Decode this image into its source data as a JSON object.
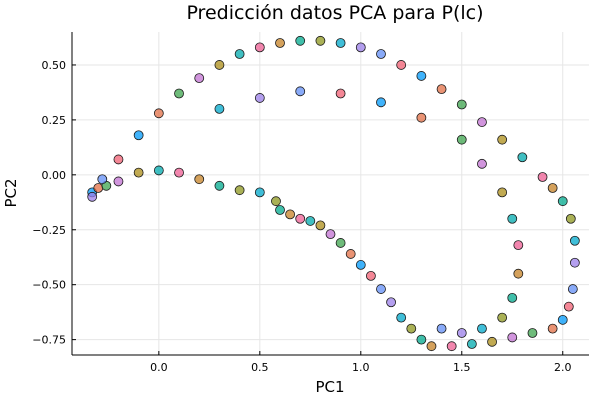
{
  "chart_data": {
    "type": "scatter",
    "title": "Predicción datos PCA para P(lc)",
    "xlabel": "PC1",
    "ylabel": "PC2",
    "xlim": [
      -0.43,
      2.13
    ],
    "ylim": [
      -0.82,
      0.65
    ],
    "xticks": [
      0.0,
      0.5,
      1.0,
      1.5,
      2.0
    ],
    "xtick_labels": [
      "0.0",
      "0.5",
      "1.0",
      "1.5",
      "2.0"
    ],
    "yticks": [
      -0.75,
      -0.5,
      -0.25,
      0.0,
      0.25,
      0.5
    ],
    "ytick_labels": [
      "−0.75",
      "−0.50",
      "−0.25",
      "0.00",
      "0.25",
      "0.50"
    ],
    "grid": true,
    "legend": "none",
    "marker_colors": [
      "#009AF9",
      "#E26F46",
      "#3DA44D",
      "#C271D2",
      "#AC8E18",
      "#00A9AD",
      "#ED5E93",
      "#C68225",
      "#00A98D",
      "#8E971E",
      "#00A8CB",
      "#9B7FE9",
      "#618DF6",
      "#F05F73"
    ],
    "series": [
      {
        "points": [
          [
            -0.33,
            -0.08
          ],
          [
            -0.3,
            -0.06
          ],
          [
            -0.26,
            -0.05
          ],
          [
            -0.2,
            -0.03
          ],
          [
            -0.1,
            0.01
          ],
          [
            0.0,
            0.02
          ],
          [
            0.1,
            0.01
          ],
          [
            0.2,
            -0.02
          ],
          [
            0.3,
            -0.05
          ],
          [
            0.4,
            -0.07
          ],
          [
            0.5,
            -0.08
          ],
          [
            -0.33,
            -0.1
          ],
          [
            -0.28,
            -0.02
          ],
          [
            -0.2,
            0.07
          ],
          [
            -0.1,
            0.18
          ],
          [
            0.0,
            0.28
          ],
          [
            0.1,
            0.37
          ],
          [
            0.2,
            0.44
          ],
          [
            0.3,
            0.5
          ],
          [
            0.4,
            0.55
          ],
          [
            0.5,
            0.58
          ],
          [
            0.6,
            0.6
          ],
          [
            0.7,
            0.61
          ],
          [
            0.8,
            0.61
          ],
          [
            0.9,
            0.6
          ],
          [
            1.0,
            0.58
          ],
          [
            1.1,
            0.55
          ],
          [
            1.2,
            0.5
          ],
          [
            1.3,
            0.45
          ],
          [
            1.4,
            0.39
          ],
          [
            1.5,
            0.32
          ],
          [
            1.6,
            0.24
          ],
          [
            1.7,
            0.16
          ],
          [
            1.8,
            0.08
          ],
          [
            1.9,
            -0.01
          ],
          [
            1.95,
            -0.06
          ],
          [
            2.0,
            -0.12
          ],
          [
            2.04,
            -0.2
          ],
          [
            2.06,
            -0.3
          ],
          [
            2.06,
            -0.4
          ],
          [
            2.05,
            -0.52
          ],
          [
            2.03,
            -0.6
          ],
          [
            2.0,
            -0.66
          ],
          [
            1.95,
            -0.7
          ],
          [
            1.85,
            -0.72
          ],
          [
            1.75,
            -0.74
          ],
          [
            1.65,
            -0.76
          ],
          [
            1.55,
            -0.77
          ],
          [
            1.45,
            -0.78
          ],
          [
            1.35,
            -0.78
          ],
          [
            1.3,
            -0.75
          ],
          [
            1.25,
            -0.7
          ],
          [
            1.2,
            -0.65
          ],
          [
            1.15,
            -0.58
          ],
          [
            1.1,
            -0.52
          ],
          [
            1.05,
            -0.46
          ],
          [
            1.0,
            -0.41
          ],
          [
            0.95,
            -0.36
          ],
          [
            0.9,
            -0.31
          ],
          [
            0.85,
            -0.27
          ],
          [
            0.8,
            -0.23
          ],
          [
            0.75,
            -0.21
          ],
          [
            0.7,
            -0.2
          ],
          [
            0.65,
            -0.18
          ],
          [
            0.6,
            -0.16
          ],
          [
            0.58,
            -0.12
          ],
          [
            0.3,
            0.3
          ],
          [
            0.5,
            0.35
          ],
          [
            0.7,
            0.38
          ],
          [
            0.9,
            0.37
          ],
          [
            1.1,
            0.33
          ],
          [
            1.3,
            0.26
          ],
          [
            1.5,
            0.16
          ],
          [
            1.6,
            0.05
          ],
          [
            1.7,
            -0.08
          ],
          [
            1.75,
            -0.2
          ],
          [
            1.78,
            -0.32
          ],
          [
            1.78,
            -0.45
          ],
          [
            1.75,
            -0.56
          ],
          [
            1.7,
            -0.65
          ],
          [
            1.6,
            -0.7
          ],
          [
            1.5,
            -0.72
          ],
          [
            1.4,
            -0.7
          ]
        ]
      }
    ]
  }
}
